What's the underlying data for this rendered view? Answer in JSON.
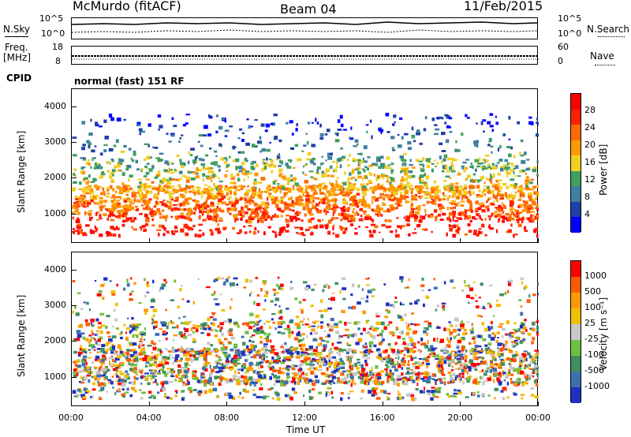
{
  "header": {
    "station": "McMurdo (fitACF)",
    "beam": "Beam 04",
    "date": "11/Feb/2015"
  },
  "left_labels": {
    "nsky": "N.Sky",
    "freq": "Freq.",
    "freq_unit": "[MHz]",
    "cpid": "CPID"
  },
  "right_labels": {
    "nsearch": "N.Search",
    "nave": "Nave"
  },
  "small_axes": {
    "nsky_ticks": [
      "10^5",
      "10^0"
    ],
    "nsearch_ticks": [
      "10^5",
      "10^0"
    ],
    "freq_ticks": [
      "18",
      "8"
    ],
    "nave_ticks": [
      "60",
      "0"
    ]
  },
  "cpid_text": "normal (fast) 151 RF",
  "chart_data": [
    {
      "type": "heatmap",
      "panel": "power",
      "ylabel": "Slant Range [km]",
      "yticks": [
        "4000",
        "3000",
        "2000",
        "1000"
      ],
      "ylim": [
        180,
        4500
      ],
      "xlim": [
        0,
        24
      ],
      "xticks": [
        "00:00",
        "04:00",
        "08:00",
        "12:00",
        "16:00",
        "20:00",
        "00:00"
      ],
      "colorbar": {
        "label": "Power [dB]",
        "ticks": [
          "28",
          "24",
          "20",
          "16",
          "12",
          "8",
          "4"
        ],
        "colors": [
          "#0000ff",
          "#1f3fa8",
          "#3f7f9f",
          "#3f9f5f",
          "#f0d020",
          "#ff9a00",
          "#ff6a00",
          "#ff2000",
          "#ff0000"
        ]
      }
    },
    {
      "type": "heatmap",
      "panel": "velocity",
      "ylabel": "Slant Range [km]",
      "yticks": [
        "4000",
        "3000",
        "2000",
        "1000"
      ],
      "ylim": [
        180,
        4500
      ],
      "xlim": [
        0,
        24
      ],
      "xticks": [
        "00:00",
        "04:00",
        "08:00",
        "12:00",
        "16:00",
        "20:00",
        "00:00"
      ],
      "xlabel": "Time UT",
      "colorbar": {
        "label": "Velocity [m s⁻¹]",
        "ticks": [
          "1000",
          "500",
          "100",
          "25",
          "-25",
          "-100",
          "-500",
          "-1000"
        ],
        "colors": [
          "#2030c0",
          "#3e6fb0",
          "#3f8f5f",
          "#6fc040",
          "#c8c8c8",
          "#f0c000",
          "#ff9a00",
          "#ff5a00",
          "#ff0000"
        ]
      }
    }
  ]
}
